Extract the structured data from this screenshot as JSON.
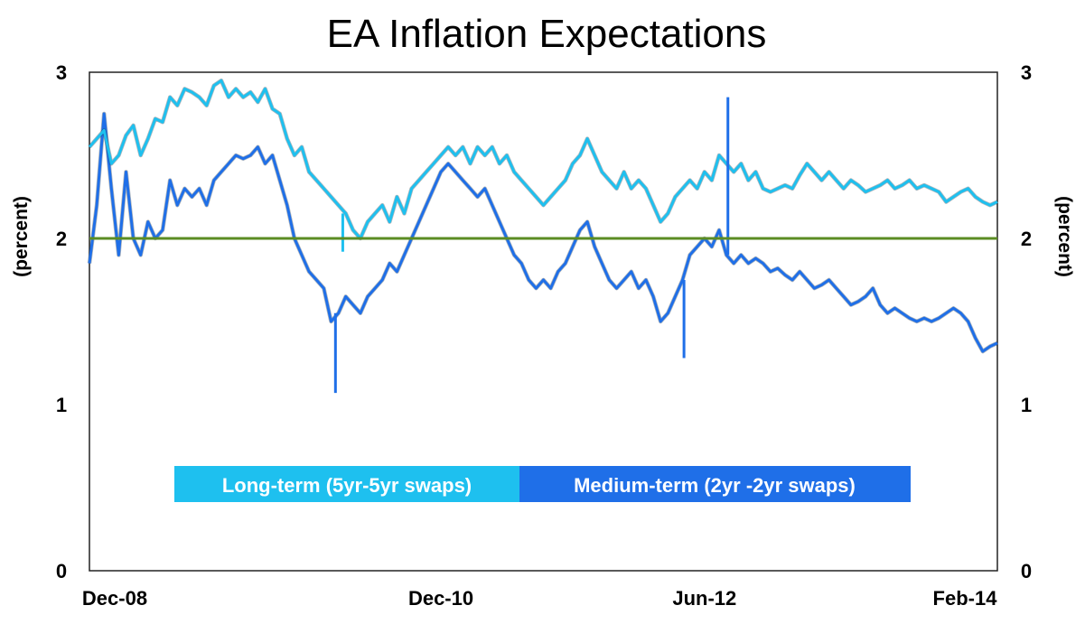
{
  "chart_data": {
    "type": "line",
    "title": "EA Inflation Expectations",
    "ylabel_left": "(percent)",
    "ylabel_right": "(percent)",
    "ylim": [
      0,
      3
    ],
    "yticks": [
      "0",
      "1",
      "2",
      "3"
    ],
    "xlim": [
      0,
      62
    ],
    "xticks": [
      {
        "label": "Dec-08",
        "x": 0
      },
      {
        "label": "Dec-10",
        "x": 24
      },
      {
        "label": "Jun-12",
        "x": 42
      },
      {
        "label": "Feb-14",
        "x": 62
      }
    ],
    "reference_line": {
      "value": 2.0,
      "color": "#5b8c23"
    },
    "x_unit": "months since Dec-08",
    "series": [
      {
        "name": "Long-term (5yr-5yr swaps)",
        "color": "#1ec0ef",
        "points": [
          [
            0,
            2.55
          ],
          [
            0.5,
            2.6
          ],
          [
            1,
            2.65
          ],
          [
            1.5,
            2.45
          ],
          [
            2,
            2.5
          ],
          [
            2.5,
            2.62
          ],
          [
            3,
            2.68
          ],
          [
            3.5,
            2.5
          ],
          [
            4,
            2.6
          ],
          [
            4.5,
            2.72
          ],
          [
            5,
            2.7
          ],
          [
            5.5,
            2.85
          ],
          [
            6,
            2.8
          ],
          [
            6.5,
            2.9
          ],
          [
            7,
            2.88
          ],
          [
            7.5,
            2.85
          ],
          [
            8,
            2.8
          ],
          [
            8.5,
            2.92
          ],
          [
            9,
            2.95
          ],
          [
            9.5,
            2.85
          ],
          [
            10,
            2.9
          ],
          [
            10.5,
            2.85
          ],
          [
            11,
            2.88
          ],
          [
            11.5,
            2.82
          ],
          [
            12,
            2.9
          ],
          [
            12.5,
            2.78
          ],
          [
            13,
            2.75
          ],
          [
            13.5,
            2.6
          ],
          [
            14,
            2.5
          ],
          [
            14.5,
            2.55
          ],
          [
            15,
            2.4
          ],
          [
            15.5,
            2.35
          ],
          [
            16,
            2.3
          ],
          [
            16.5,
            2.25
          ],
          [
            17,
            2.2
          ],
          [
            17.5,
            2.15
          ],
          [
            18,
            2.05
          ],
          [
            18.5,
            2.0
          ],
          [
            19,
            2.1
          ],
          [
            19.5,
            2.15
          ],
          [
            20,
            2.2
          ],
          [
            20.5,
            2.1
          ],
          [
            21,
            2.25
          ],
          [
            21.5,
            2.15
          ],
          [
            22,
            2.3
          ],
          [
            22.5,
            2.35
          ],
          [
            23,
            2.4
          ],
          [
            23.5,
            2.45
          ],
          [
            24,
            2.5
          ],
          [
            24.5,
            2.55
          ],
          [
            25,
            2.5
          ],
          [
            25.5,
            2.55
          ],
          [
            26,
            2.45
          ],
          [
            26.5,
            2.55
          ],
          [
            27,
            2.5
          ],
          [
            27.5,
            2.55
          ],
          [
            28,
            2.45
          ],
          [
            28.5,
            2.5
          ],
          [
            29,
            2.4
          ],
          [
            29.5,
            2.35
          ],
          [
            30,
            2.3
          ],
          [
            30.5,
            2.25
          ],
          [
            31,
            2.2
          ],
          [
            31.5,
            2.25
          ],
          [
            32,
            2.3
          ],
          [
            32.5,
            2.35
          ],
          [
            33,
            2.45
          ],
          [
            33.5,
            2.5
          ],
          [
            34,
            2.6
          ],
          [
            34.5,
            2.5
          ],
          [
            35,
            2.4
          ],
          [
            35.5,
            2.35
          ],
          [
            36,
            2.3
          ],
          [
            36.5,
            2.4
          ],
          [
            37,
            2.3
          ],
          [
            37.5,
            2.35
          ],
          [
            38,
            2.3
          ],
          [
            38.5,
            2.2
          ],
          [
            39,
            2.1
          ],
          [
            39.5,
            2.15
          ],
          [
            40,
            2.25
          ],
          [
            40.5,
            2.3
          ],
          [
            41,
            2.35
          ],
          [
            41.5,
            2.3
          ],
          [
            42,
            2.4
          ],
          [
            42.5,
            2.35
          ],
          [
            43,
            2.5
          ],
          [
            43.5,
            2.45
          ],
          [
            44,
            2.4
          ],
          [
            44.5,
            2.45
          ],
          [
            45,
            2.35
          ],
          [
            45.5,
            2.4
          ],
          [
            46,
            2.3
          ],
          [
            46.5,
            2.28
          ],
          [
            47,
            2.3
          ],
          [
            47.5,
            2.32
          ],
          [
            48,
            2.3
          ],
          [
            48.5,
            2.38
          ],
          [
            49,
            2.45
          ],
          [
            49.5,
            2.4
          ],
          [
            50,
            2.35
          ],
          [
            50.5,
            2.4
          ],
          [
            51,
            2.35
          ],
          [
            51.5,
            2.3
          ],
          [
            52,
            2.35
          ],
          [
            52.5,
            2.32
          ],
          [
            53,
            2.28
          ],
          [
            53.5,
            2.3
          ],
          [
            54,
            2.32
          ],
          [
            54.5,
            2.35
          ],
          [
            55,
            2.3
          ],
          [
            55.5,
            2.32
          ],
          [
            56,
            2.35
          ],
          [
            56.5,
            2.3
          ],
          [
            57,
            2.32
          ],
          [
            57.5,
            2.3
          ],
          [
            58,
            2.28
          ],
          [
            58.5,
            2.22
          ],
          [
            59,
            2.25
          ],
          [
            59.5,
            2.28
          ],
          [
            60,
            2.3
          ],
          [
            60.5,
            2.25
          ],
          [
            61,
            2.22
          ],
          [
            61.5,
            2.2
          ],
          [
            62,
            2.22
          ]
        ]
      },
      {
        "name": "Medium-term (2yr -2yr swaps)",
        "color": "#1f6fe8",
        "points": [
          [
            0,
            1.85
          ],
          [
            0.5,
            2.2
          ],
          [
            1,
            2.75
          ],
          [
            1.5,
            2.3
          ],
          [
            2,
            1.9
          ],
          [
            2.5,
            2.4
          ],
          [
            3,
            2.0
          ],
          [
            3.5,
            1.9
          ],
          [
            4,
            2.1
          ],
          [
            4.5,
            2.0
          ],
          [
            5,
            2.05
          ],
          [
            5.5,
            2.35
          ],
          [
            6,
            2.2
          ],
          [
            6.5,
            2.3
          ],
          [
            7,
            2.25
          ],
          [
            7.5,
            2.3
          ],
          [
            8,
            2.2
          ],
          [
            8.5,
            2.35
          ],
          [
            9,
            2.4
          ],
          [
            9.5,
            2.45
          ],
          [
            10,
            2.5
          ],
          [
            10.5,
            2.48
          ],
          [
            11,
            2.5
          ],
          [
            11.5,
            2.55
          ],
          [
            12,
            2.45
          ],
          [
            12.5,
            2.5
          ],
          [
            13,
            2.35
          ],
          [
            13.5,
            2.2
          ],
          [
            14,
            2.0
          ],
          [
            14.5,
            1.9
          ],
          [
            15,
            1.8
          ],
          [
            15.5,
            1.75
          ],
          [
            16,
            1.7
          ],
          [
            16.5,
            1.5
          ],
          [
            17,
            1.55
          ],
          [
            17.5,
            1.65
          ],
          [
            18,
            1.6
          ],
          [
            18.5,
            1.55
          ],
          [
            19,
            1.65
          ],
          [
            19.5,
            1.7
          ],
          [
            20,
            1.75
          ],
          [
            20.5,
            1.85
          ],
          [
            21,
            1.8
          ],
          [
            21.5,
            1.9
          ],
          [
            22,
            2.0
          ],
          [
            22.5,
            2.1
          ],
          [
            23,
            2.2
          ],
          [
            23.5,
            2.3
          ],
          [
            24,
            2.4
          ],
          [
            24.5,
            2.45
          ],
          [
            25,
            2.4
          ],
          [
            25.5,
            2.35
          ],
          [
            26,
            2.3
          ],
          [
            26.5,
            2.25
          ],
          [
            27,
            2.3
          ],
          [
            27.5,
            2.2
          ],
          [
            28,
            2.1
          ],
          [
            28.5,
            2.0
          ],
          [
            29,
            1.9
          ],
          [
            29.5,
            1.85
          ],
          [
            30,
            1.75
          ],
          [
            30.5,
            1.7
          ],
          [
            31,
            1.75
          ],
          [
            31.5,
            1.7
          ],
          [
            32,
            1.8
          ],
          [
            32.5,
            1.85
          ],
          [
            33,
            1.95
          ],
          [
            33.5,
            2.05
          ],
          [
            34,
            2.1
          ],
          [
            34.5,
            1.95
          ],
          [
            35,
            1.85
          ],
          [
            35.5,
            1.75
          ],
          [
            36,
            1.7
          ],
          [
            36.5,
            1.75
          ],
          [
            37,
            1.8
          ],
          [
            37.5,
            1.7
          ],
          [
            38,
            1.75
          ],
          [
            38.5,
            1.65
          ],
          [
            39,
            1.5
          ],
          [
            39.5,
            1.55
          ],
          [
            40,
            1.65
          ],
          [
            40.5,
            1.75
          ],
          [
            41,
            1.9
          ],
          [
            41.5,
            1.95
          ],
          [
            42,
            2.0
          ],
          [
            42.5,
            1.95
          ],
          [
            43,
            2.05
          ],
          [
            43.5,
            1.9
          ],
          [
            44,
            1.85
          ],
          [
            44.5,
            1.9
          ],
          [
            45,
            1.85
          ],
          [
            45.5,
            1.88
          ],
          [
            46,
            1.85
          ],
          [
            46.5,
            1.8
          ],
          [
            47,
            1.82
          ],
          [
            47.5,
            1.78
          ],
          [
            48,
            1.75
          ],
          [
            48.5,
            1.8
          ],
          [
            49,
            1.75
          ],
          [
            49.5,
            1.7
          ],
          [
            50,
            1.72
          ],
          [
            50.5,
            1.75
          ],
          [
            51,
            1.7
          ],
          [
            51.5,
            1.65
          ],
          [
            52,
            1.6
          ],
          [
            52.5,
            1.62
          ],
          [
            53,
            1.65
          ],
          [
            53.5,
            1.7
          ],
          [
            54,
            1.6
          ],
          [
            54.5,
            1.55
          ],
          [
            55,
            1.58
          ],
          [
            55.5,
            1.55
          ],
          [
            56,
            1.52
          ],
          [
            56.5,
            1.5
          ],
          [
            57,
            1.52
          ],
          [
            57.5,
            1.5
          ],
          [
            58,
            1.52
          ],
          [
            58.5,
            1.55
          ],
          [
            59,
            1.58
          ],
          [
            59.5,
            1.55
          ],
          [
            60,
            1.5
          ],
          [
            60.5,
            1.4
          ],
          [
            61,
            1.32
          ],
          [
            61.5,
            1.35
          ],
          [
            62,
            1.37
          ]
        ]
      }
    ],
    "spikes": [
      {
        "series": 1,
        "x": 16.8,
        "y": 1.07
      },
      {
        "series": 1,
        "x": 40.6,
        "y": 1.28
      },
      {
        "series": 1,
        "x": 43.6,
        "y": 2.85
      },
      {
        "series": 0,
        "x": 17.3,
        "y": 1.92
      }
    ]
  }
}
